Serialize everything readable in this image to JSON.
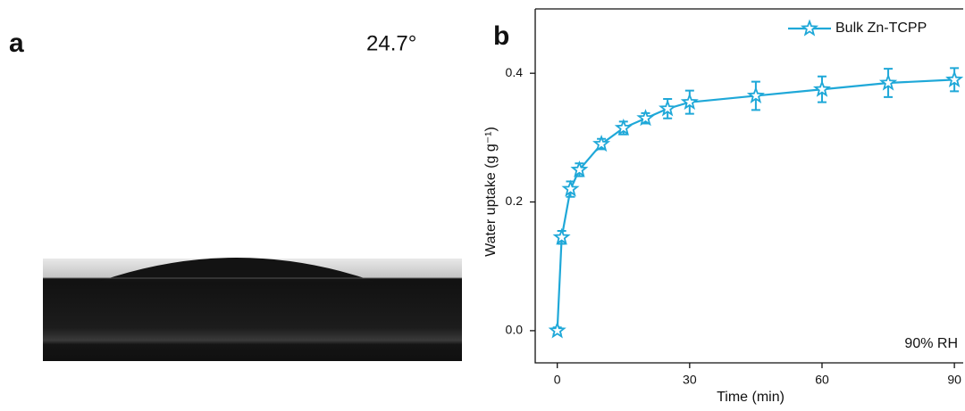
{
  "panels": [
    {
      "label": "a",
      "annotation": "24.7°"
    },
    {
      "label": "b"
    }
  ],
  "chart_data": {
    "type": "line",
    "x_label": "Time (min)",
    "y_label": "Water uptake (g g⁻¹)",
    "annotation": "90% RH",
    "x": [
      0,
      1,
      3,
      5,
      10,
      15,
      20,
      25,
      30,
      45,
      60,
      75,
      90
    ],
    "series": [
      {
        "name": "Bulk Zn-TCPP",
        "color": "#1fa8d8",
        "values": [
          0,
          0.145,
          0.22,
          0.25,
          0.29,
          0.315,
          0.33,
          0.345,
          0.355,
          0.365,
          0.375,
          0.385,
          0.39
        ],
        "errors": [
          0.005,
          0.01,
          0.012,
          0.01,
          0.008,
          0.01,
          0.008,
          0.015,
          0.018,
          0.022,
          0.02,
          0.022,
          0.018
        ]
      }
    ],
    "xlim": [
      -5,
      92
    ],
    "ylim": [
      -0.05,
      0.5
    ],
    "xticks": [
      0,
      30,
      60,
      90
    ],
    "yticks": [
      {
        "value": 0,
        "label": "0.0"
      },
      0.2,
      0.4
    ],
    "legend": "upper right",
    "marker": "star"
  }
}
